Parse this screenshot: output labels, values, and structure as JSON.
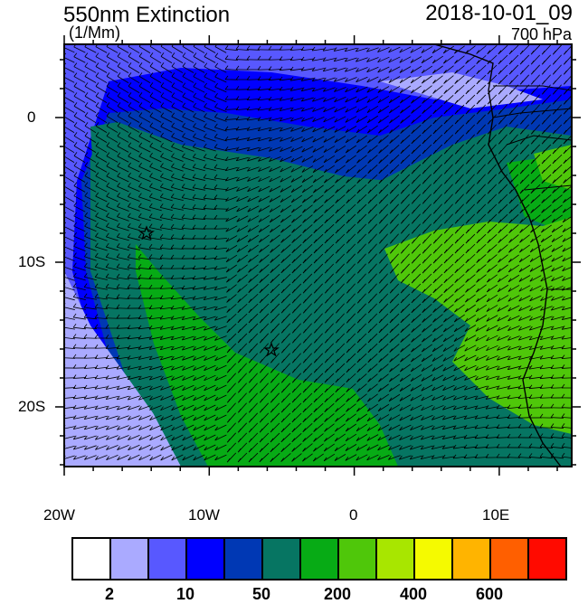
{
  "title": "550nm Extinction",
  "units": "(1/Mm)",
  "time": "2018-10-01_09",
  "level": "700 hPa",
  "map": {
    "lon_range": [
      -20,
      15
    ],
    "lat_range": [
      -24,
      5
    ],
    "lon_labels": [
      "20W",
      "10W",
      "0",
      "10E"
    ],
    "lat_labels": [
      "0",
      "10S",
      "20S"
    ],
    "markers": [
      {
        "type": "star",
        "lon": -14.5,
        "lat": -8
      },
      {
        "type": "star",
        "lon": -5.8,
        "lat": -16
      }
    ],
    "overlay": "wind barbs"
  },
  "colorbar": {
    "colors": [
      "#ffffff",
      "#aaaaff",
      "#5858ff",
      "#0000ff",
      "#0038b4",
      "#067562",
      "#07ab15",
      "#4fc70a",
      "#a8e600",
      "#f5fa00",
      "#ffb400",
      "#ff5f00",
      "#ff0a00"
    ],
    "labels": [
      "2",
      "10",
      "50",
      "200",
      "400",
      "600"
    ]
  }
}
